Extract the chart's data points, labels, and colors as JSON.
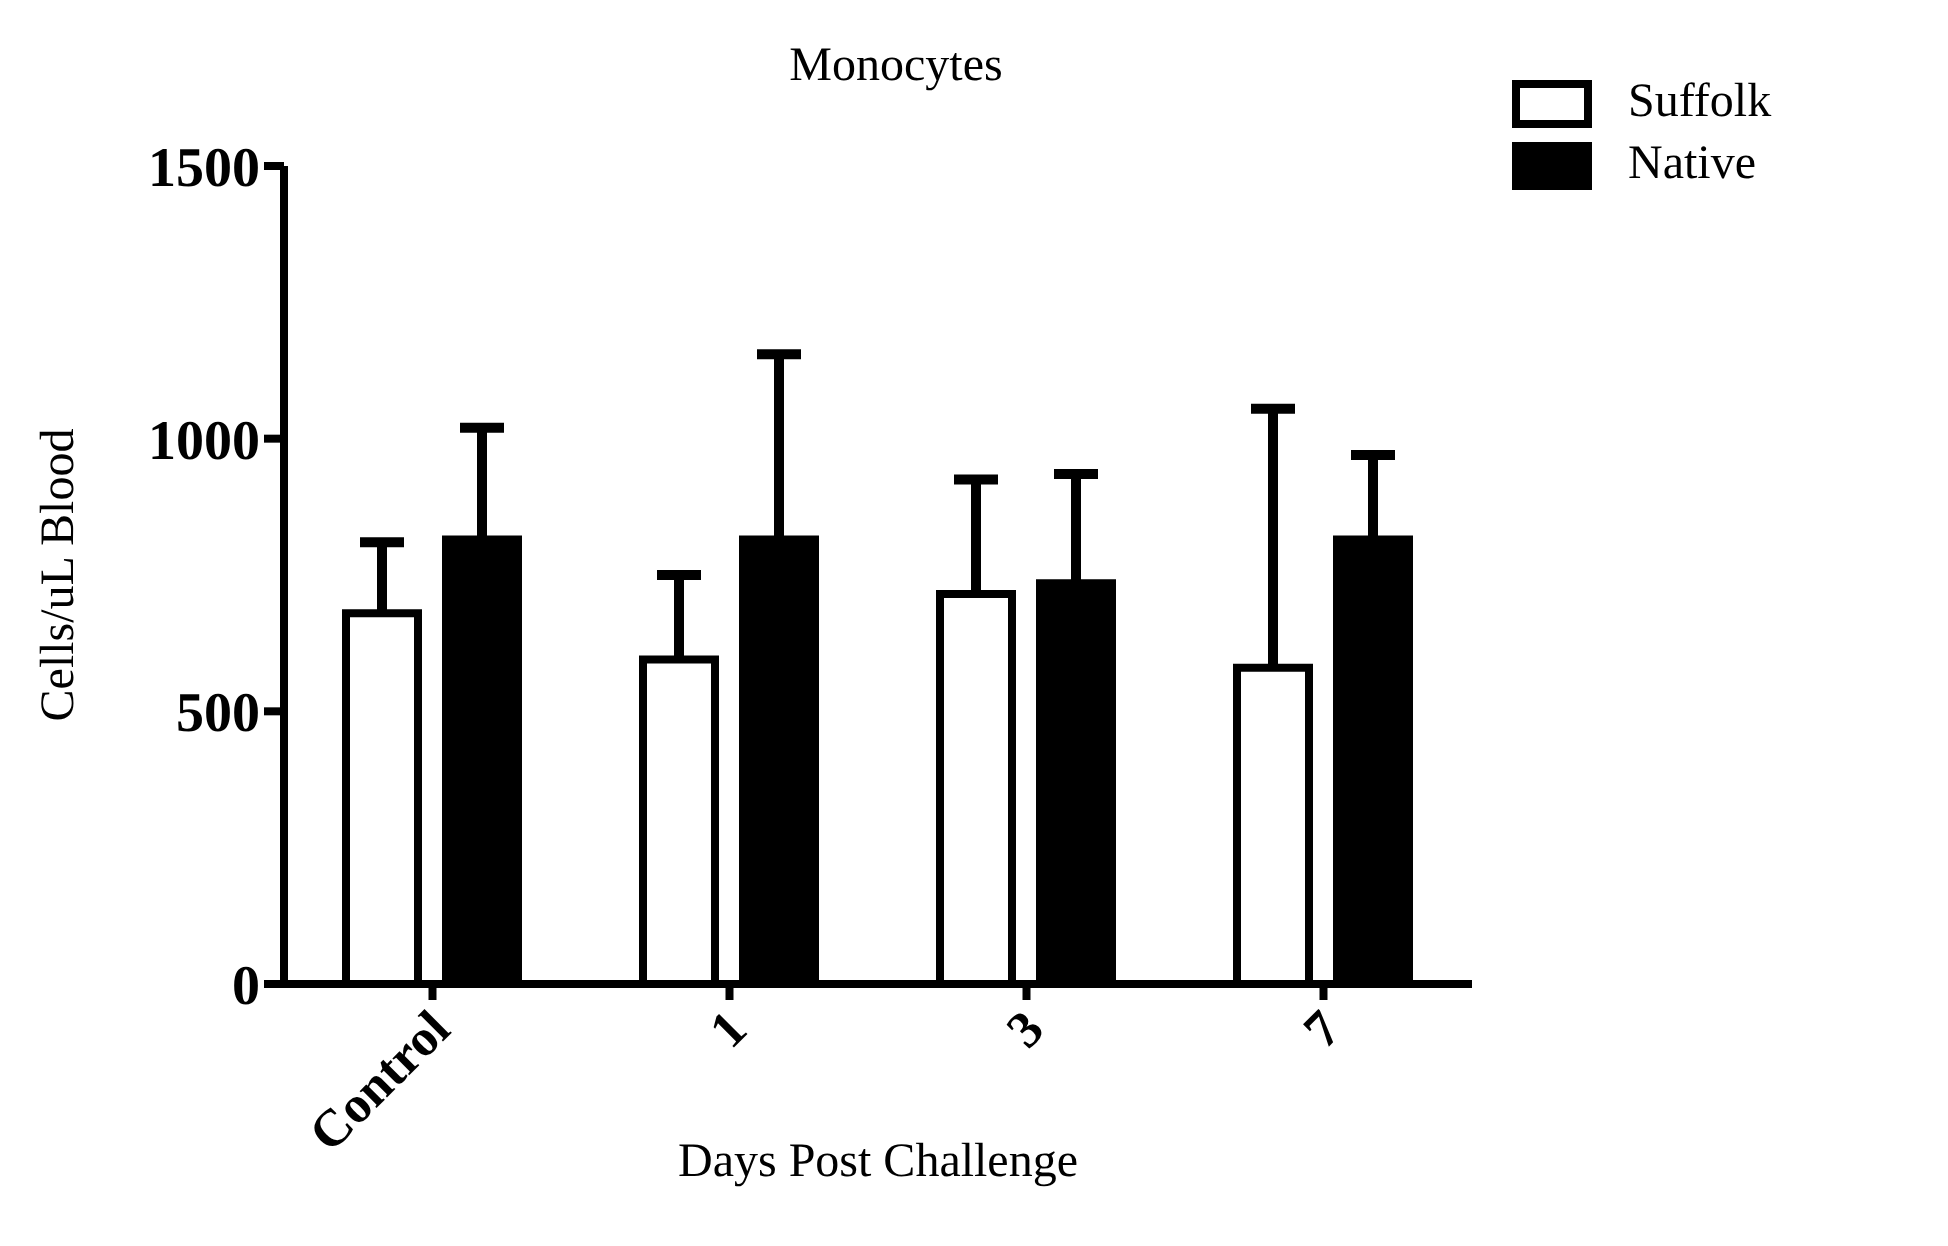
{
  "chart_data": {
    "type": "bar",
    "title": "Monocytes",
    "xlabel": "Days Post Challenge",
    "ylabel": "Cells/uL Blood",
    "categories": [
      "Control",
      "1",
      "3",
      "7"
    ],
    "series": [
      {
        "name": "Suffolk",
        "color": "#ffffff",
        "values": [
          680,
          595,
          715,
          580
        ],
        "errors": [
          [
            680,
            810
          ],
          [
            595,
            750
          ],
          [
            715,
            925
          ],
          [
            580,
            1055
          ]
        ]
      },
      {
        "name": "Native",
        "color": "#000000",
        "values": [
          815,
          815,
          735,
          815
        ],
        "errors": [
          [
            815,
            1020
          ],
          [
            815,
            1155
          ],
          [
            735,
            935
          ],
          [
            815,
            970
          ]
        ]
      }
    ],
    "ylim": [
      0,
      1500
    ],
    "yticks": [
      0,
      500,
      1000,
      1500
    ],
    "grid": false,
    "legend": "top right"
  }
}
